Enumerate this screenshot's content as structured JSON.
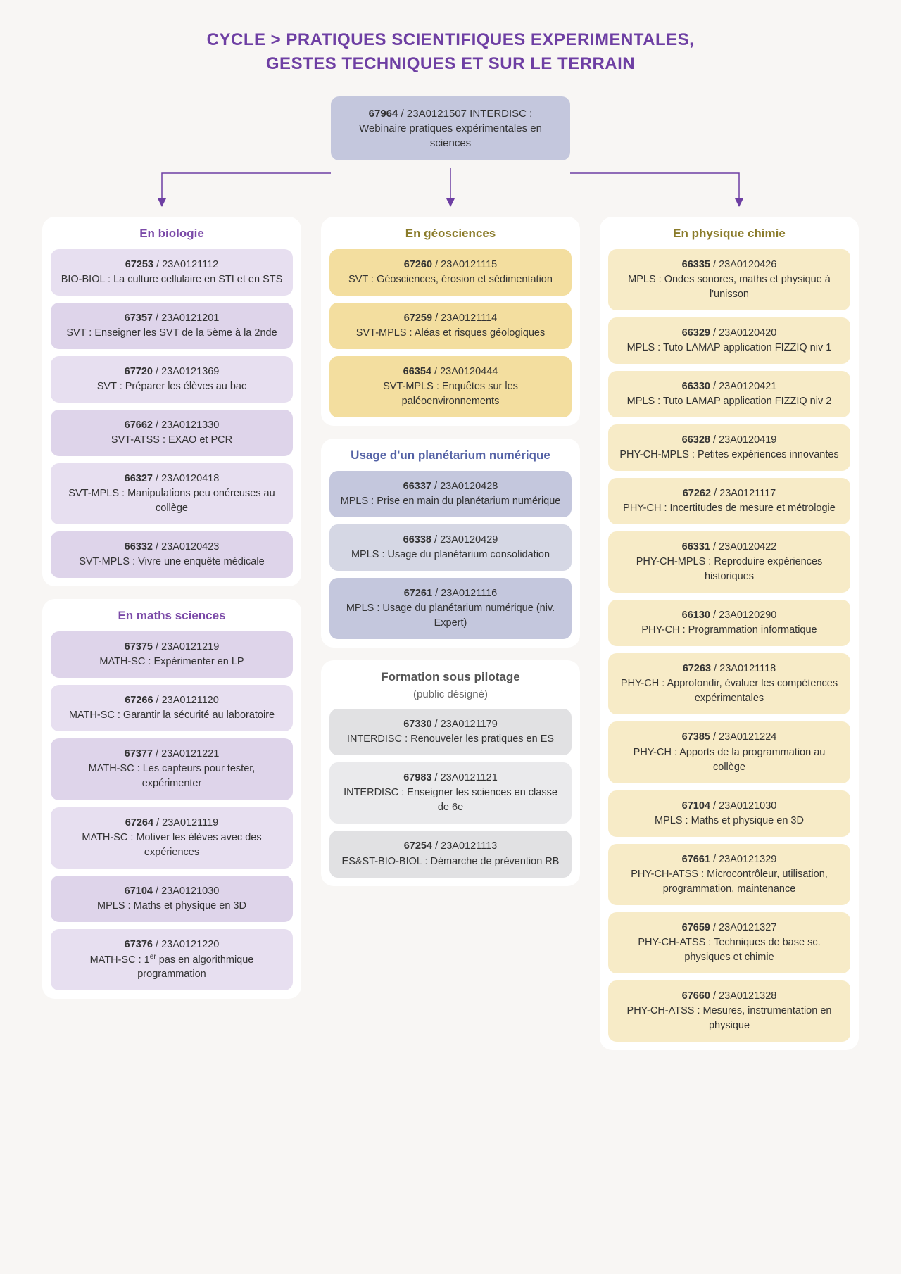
{
  "title_line1": "CYCLE > PRATIQUES SCIENTIFIQUES EXPERIMENTALES,",
  "title_line2": "GESTES TECHNIQUES ET SUR LE TERRAIN",
  "root": {
    "code1": "67964",
    "code2": "23A0121507",
    "prefix": "INTERDISC",
    "text": "Webinaire pratiques expérimentales en sciences"
  },
  "colors": {
    "purple_hdr": "#7b4aa8",
    "olive_hdr": "#8a7b2a",
    "blue_hdr": "#5462a6",
    "gray_hdr": "#555555",
    "lav1": "#e7dff0",
    "lav2": "#ded4ea",
    "yel1": "#f3de9f",
    "yel2": "#f7ebc7",
    "blu1": "#c4c7dd",
    "blu2": "#d5d7e4",
    "gry1": "#e1e1e3",
    "gry2": "#eaeaec",
    "arrow": "#6e3fa3"
  },
  "sections": {
    "biologie": {
      "title": "En biologie",
      "hdr": "hdr-purple",
      "shades": [
        "bg-lav1",
        "bg-lav2"
      ],
      "items": [
        {
          "c1": "67253",
          "c2": "23A0121112",
          "p": "BIO-BIOL",
          "t": "La culture cellulaire en STI et en STS"
        },
        {
          "c1": "67357",
          "c2": "23A0121201",
          "p": "SVT",
          "t": "Enseigner les SVT de la 5ème à la 2nde"
        },
        {
          "c1": "67720",
          "c2": "23A0121369",
          "p": "SVT",
          "t": "Préparer les élèves au bac"
        },
        {
          "c1": "67662",
          "c2": "23A0121330",
          "p": "SVT-ATSS",
          "t": "EXAO et PCR"
        },
        {
          "c1": "66327",
          "c2": "23A0120418",
          "p": "SVT-MPLS",
          "t": "Manipulations peu onéreuses au collège"
        },
        {
          "c1": "66332",
          "c2": "23A0120423",
          "p": "SVT-MPLS",
          "t": "Vivre une enquête médicale"
        }
      ]
    },
    "maths": {
      "title": "En maths sciences",
      "hdr": "hdr-purple",
      "shades": [
        "bg-lav2",
        "bg-lav1"
      ],
      "items": [
        {
          "c1": "67375",
          "c2": "23A0121219",
          "p": "MATH-SC",
          "t": "Expérimenter en LP"
        },
        {
          "c1": "67266",
          "c2": "23A0121120",
          "p": "MATH-SC",
          "t": "Garantir la sécurité au laboratoire"
        },
        {
          "c1": "67377",
          "c2": "23A0121221",
          "p": "MATH-SC",
          "t": "Les capteurs pour tester, expérimenter"
        },
        {
          "c1": "67264",
          "c2": "23A0121119",
          "p": "MATH-SC",
          "t": "Motiver les élèves avec des expériences"
        },
        {
          "c1": "67104",
          "c2": "23A0121030",
          "p": "MPLS",
          "t": "Maths et physique en 3D"
        },
        {
          "c1": "67376",
          "c2": "23A0121220",
          "p": "MATH-SC",
          "t_html": "1<sup>er</sup> pas en algorithmique programmation"
        }
      ]
    },
    "geo": {
      "title": "En géosciences",
      "hdr": "hdr-olive",
      "shades": [
        "bg-yel1",
        "bg-yel1",
        "bg-yel1"
      ],
      "items": [
        {
          "c1": "67260",
          "c2": "23A0121115",
          "p": "SVT",
          "t": "Géosciences, érosion et sédimentation"
        },
        {
          "c1": "67259",
          "c2": "23A0121114",
          "p": "SVT-MPLS",
          "t": "Aléas et risques géologiques"
        },
        {
          "c1": "66354",
          "c2": "23A0120444",
          "p": "SVT-MPLS",
          "t": "Enquêtes sur les paléoenvironnements"
        }
      ]
    },
    "planetarium": {
      "title": "Usage d'un planétarium numérique",
      "hdr": "hdr-blue",
      "shades": [
        "bg-blu1",
        "bg-blu2"
      ],
      "items": [
        {
          "c1": "66337",
          "c2": "23A0120428",
          "p": "MPLS",
          "t": "Prise en main du planétarium numérique"
        },
        {
          "c1": "66338",
          "c2": "23A0120429",
          "p": "MPLS",
          "t": "Usage du planétarium consolidation"
        },
        {
          "c1": "67261",
          "c2": "23A0121116",
          "p": "MPLS",
          "t": "Usage du planétarium numérique (niv. Expert)"
        }
      ]
    },
    "pilotage": {
      "title": "Formation sous pilotage",
      "sub": "(public désigné)",
      "hdr": "hdr-gray",
      "shades": [
        "bg-gry1",
        "bg-gry2"
      ],
      "items": [
        {
          "c1": "67330",
          "c2": "23A0121179",
          "p": "INTERDISC",
          "t": "Renouveler les pratiques en ES"
        },
        {
          "c1": "67983",
          "c2": "23A0121121",
          "p": "INTERDISC",
          "t": "Enseigner les sciences en classe de 6e"
        },
        {
          "c1": "67254",
          "c2": "23A0121113",
          "p": "ES&ST-BIO-BIOL",
          "t": "Démarche de prévention RB"
        }
      ]
    },
    "physique": {
      "title": "En physique chimie",
      "hdr": "hdr-olive",
      "shades": [
        "bg-yel2",
        "bg-yel2"
      ],
      "items": [
        {
          "c1": "66335",
          "c2": "23A0120426",
          "p": "MPLS",
          "t": "Ondes sonores, maths et physique à l'unisson"
        },
        {
          "c1": "66329",
          "c2": "23A0120420",
          "p": "MPLS",
          "t": "Tuto LAMAP application FIZZIQ niv 1"
        },
        {
          "c1": "66330",
          "c2": "23A0120421",
          "p": "MPLS",
          "t": "Tuto LAMAP application FIZZIQ niv 2"
        },
        {
          "c1": "66328",
          "c2": "23A0120419",
          "p": "PHY-CH-MPLS",
          "t": "Petites expériences innovantes"
        },
        {
          "c1": "67262",
          "c2": "23A0121117",
          "p": "PHY-CH",
          "t": "Incertitudes de mesure et métrologie"
        },
        {
          "c1": "66331",
          "c2": "23A0120422",
          "p": "PHY-CH-MPLS",
          "t": "Reproduire expériences historiques"
        },
        {
          "c1": "66130",
          "c2": "23A0120290",
          "p": "PHY-CH",
          "t": "Programmation informatique"
        },
        {
          "c1": "67263",
          "c2": "23A0121118",
          "p": "PHY-CH",
          "t": "Approfondir, évaluer les compétences expérimentales"
        },
        {
          "c1": "67385",
          "c2": "23A0121224",
          "p": "PHY-CH",
          "t": "Apports de la programmation au collège"
        },
        {
          "c1": "67104",
          "c2": "23A0121030",
          "p": "MPLS",
          "t": "Maths et physique en 3D"
        },
        {
          "c1": "67661",
          "c2": "23A0121329",
          "p": "PHY-CH-ATSS",
          "t": "Microcontrôleur, utilisation, programmation, maintenance"
        },
        {
          "c1": "67659",
          "c2": "23A0121327",
          "p": "PHY-CH-ATSS",
          "t": "Techniques de base sc. physiques et chimie"
        },
        {
          "c1": "67660",
          "c2": "23A0121328",
          "p": "PHY-CH-ATSS",
          "t": "Mesures, instrumentation en physique"
        }
      ]
    }
  }
}
